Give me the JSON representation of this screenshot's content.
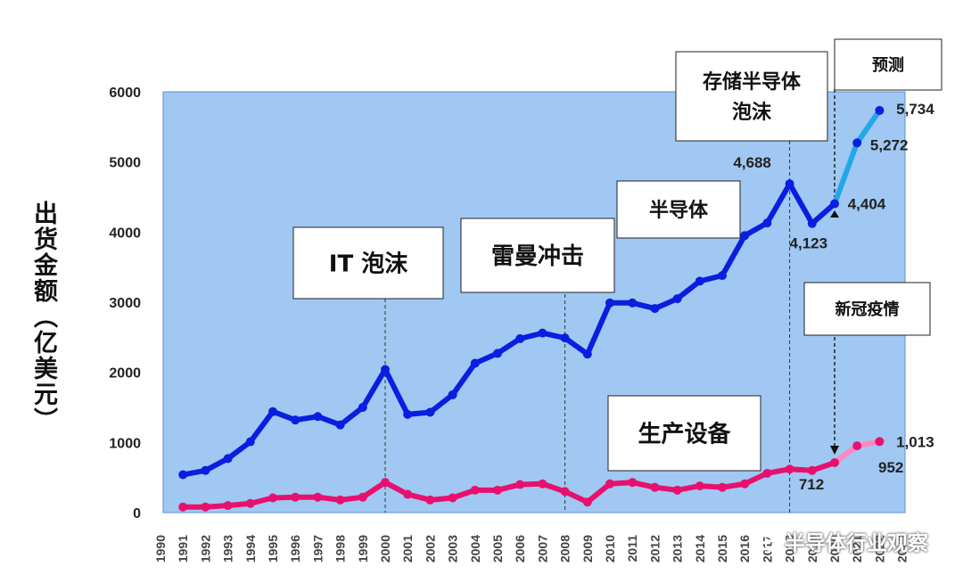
{
  "chart_data": {
    "type": "line",
    "ylabel": "出货金额（亿美元）",
    "ylim": [
      0,
      6000
    ],
    "yticks": [
      "0",
      "1000",
      "2000",
      "3000",
      "4000",
      "5000",
      "6000"
    ],
    "x": [
      "1990",
      "1991",
      "1992",
      "1993",
      "1994",
      "1995",
      "1996",
      "1997",
      "1998",
      "1999",
      "2000",
      "2001",
      "2002",
      "2003",
      "2004",
      "2005",
      "2006",
      "2007",
      "2008",
      "2009",
      "2010",
      "2011",
      "2012",
      "2013",
      "2014",
      "2015",
      "2016",
      "2017",
      "2018",
      "2019",
      "2020",
      "2021",
      "2022",
      "2023"
    ],
    "series": [
      {
        "role": "semiconductor",
        "color": "#0a1ee0",
        "values": [
          [
            "1991",
            540
          ],
          [
            "1992",
            600
          ],
          [
            "1993",
            770
          ],
          [
            "1994",
            1010
          ],
          [
            "1995",
            1440
          ],
          [
            "1996",
            1320
          ],
          [
            "1997",
            1370
          ],
          [
            "1998",
            1250
          ],
          [
            "1999",
            1500
          ],
          [
            "2000",
            2040
          ],
          [
            "2001",
            1400
          ],
          [
            "2002",
            1430
          ],
          [
            "2003",
            1680
          ],
          [
            "2004",
            2130
          ],
          [
            "2005",
            2270
          ],
          [
            "2006",
            2480
          ],
          [
            "2007",
            2560
          ],
          [
            "2008",
            2490
          ],
          [
            "2009",
            2260
          ],
          [
            "2010",
            2990
          ],
          [
            "2011",
            2990
          ],
          [
            "2012",
            2910
          ],
          [
            "2013",
            3050
          ],
          [
            "2014",
            3300
          ],
          [
            "2015",
            3380
          ],
          [
            "2016",
            3950
          ],
          [
            "2017",
            4130
          ],
          [
            "2018",
            4688
          ],
          [
            "2019",
            4123
          ],
          [
            "2020",
            4404
          ]
        ],
        "forecast_color": "#22a8e8",
        "forecast": [
          [
            "2020",
            4404
          ],
          [
            "2021",
            5272
          ],
          [
            "2022",
            5734
          ]
        ]
      },
      {
        "role": "equipment",
        "color": "#e8106e",
        "values": [
          [
            "1991",
            80
          ],
          [
            "1992",
            80
          ],
          [
            "1993",
            100
          ],
          [
            "1994",
            130
          ],
          [
            "1995",
            210
          ],
          [
            "1996",
            220
          ],
          [
            "1997",
            220
          ],
          [
            "1998",
            180
          ],
          [
            "1999",
            220
          ],
          [
            "2000",
            430
          ],
          [
            "2001",
            260
          ],
          [
            "2002",
            180
          ],
          [
            "2003",
            210
          ],
          [
            "2004",
            320
          ],
          [
            "2005",
            320
          ],
          [
            "2006",
            400
          ],
          [
            "2007",
            410
          ],
          [
            "2008",
            300
          ],
          [
            "2009",
            150
          ],
          [
            "2010",
            410
          ],
          [
            "2011",
            430
          ],
          [
            "2012",
            360
          ],
          [
            "2013",
            320
          ],
          [
            "2014",
            380
          ],
          [
            "2015",
            360
          ],
          [
            "2016",
            410
          ],
          [
            "2017",
            560
          ],
          [
            "2018",
            620
          ],
          [
            "2019",
            600
          ],
          [
            "2020",
            712
          ]
        ],
        "forecast_color": "#ff88c0",
        "forecast": [
          [
            "2020",
            712
          ],
          [
            "2021",
            952
          ],
          [
            "2022",
            1013
          ]
        ]
      }
    ],
    "data_labels": [
      {
        "text": "4,688",
        "x": "2018",
        "y": 4688
      },
      {
        "text": "4,123",
        "x": "2019",
        "y": 4123
      },
      {
        "text": "4,404",
        "x": "2020",
        "y": 4404
      },
      {
        "text": "5,272",
        "x": "2021",
        "y": 5272
      },
      {
        "text": "5,734",
        "x": "2022",
        "y": 5734
      },
      {
        "text": "712",
        "x": "2020",
        "y": 712
      },
      {
        "text": "952",
        "x": "2021",
        "y": 952
      },
      {
        "text": "1,013",
        "x": "2022",
        "y": 1013
      }
    ],
    "annotations": [
      {
        "text": "IT 泡沫",
        "x": "2000"
      },
      {
        "text": "雷曼冲击",
        "x": "2008"
      },
      {
        "text": "半导体",
        "x": ""
      },
      {
        "text": "存储半导体\n泡沫",
        "x": "2018"
      },
      {
        "text": "预测",
        "x": ""
      },
      {
        "text": "新冠疫情",
        "x": "2020"
      },
      {
        "text": "生产设备",
        "x": ""
      }
    ],
    "grid": false,
    "plot_background": "#a0c8f2"
  },
  "watermark": "半导体行业观察"
}
